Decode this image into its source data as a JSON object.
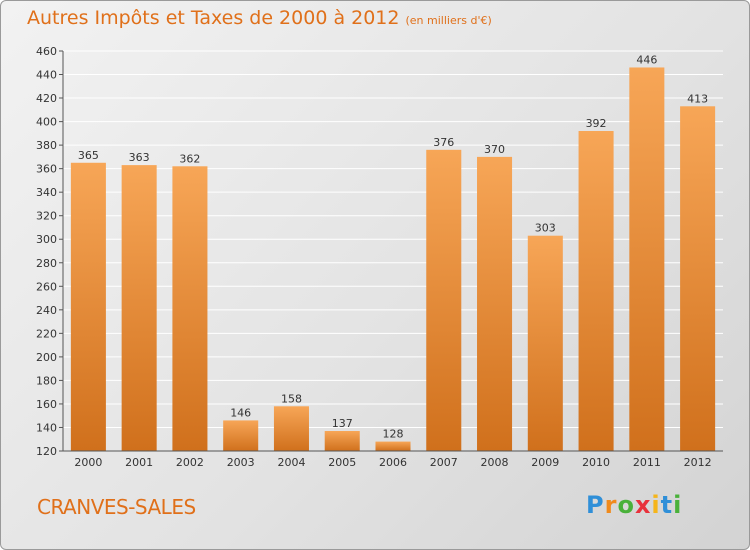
{
  "title": "Autres Impôts et Taxes de 2000 à 2012",
  "subtitle": "(en milliers d'€)",
  "commune": "CRANVES-SALES",
  "logo_text": "Proxiti",
  "colors": {
    "bar_top": "#f7a657",
    "bar_bottom": "#d0701c",
    "title": "#e0701a",
    "grid": "#ffffff"
  },
  "chart_data": {
    "type": "bar",
    "title": "Autres Impôts et Taxes de 2000 à 2012",
    "subtitle": "(en milliers d'€)",
    "categories": [
      "2000",
      "2001",
      "2002",
      "2003",
      "2004",
      "2005",
      "2006",
      "2007",
      "2008",
      "2009",
      "2010",
      "2011",
      "2012"
    ],
    "values": [
      365,
      363,
      362,
      146,
      158,
      137,
      128,
      376,
      370,
      303,
      392,
      446,
      413
    ],
    "ylim": [
      120,
      460
    ],
    "yticks": [
      120,
      140,
      160,
      180,
      200,
      220,
      240,
      260,
      280,
      300,
      320,
      340,
      360,
      380,
      400,
      420,
      440,
      460
    ],
    "grid": true,
    "data_labels": true
  }
}
